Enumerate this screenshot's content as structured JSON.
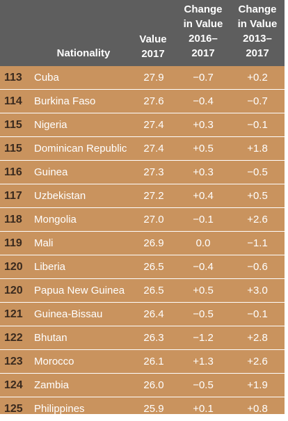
{
  "chart_data": {
    "type": "table",
    "columns": [
      {
        "key": "rank",
        "label": ""
      },
      {
        "key": "nationality",
        "label": "Nationality"
      },
      {
        "key": "value",
        "label": "Value\n2017"
      },
      {
        "key": "change_1y",
        "label": "Change\nin Value\n2016–\n2017"
      },
      {
        "key": "change_4y",
        "label": "Change\nin Value\n2013–\n2017"
      }
    ],
    "rows": [
      {
        "rank": "113",
        "nationality": "Cuba",
        "value": "27.9",
        "change_1y": "−0.7",
        "change_4y": "+0.2"
      },
      {
        "rank": "114",
        "nationality": "Burkina Faso",
        "value": "27.6",
        "change_1y": "−0.4",
        "change_4y": "−0.7"
      },
      {
        "rank": "115",
        "nationality": "Nigeria",
        "value": "27.4",
        "change_1y": "+0.3",
        "change_4y": "−0.1"
      },
      {
        "rank": "115",
        "nationality": "Dominican Republic",
        "value": "27.4",
        "change_1y": "+0.5",
        "change_4y": "+1.8"
      },
      {
        "rank": "116",
        "nationality": "Guinea",
        "value": "27.3",
        "change_1y": "+0.3",
        "change_4y": "−0.5"
      },
      {
        "rank": "117",
        "nationality": "Uzbekistan",
        "value": "27.2",
        "change_1y": "+0.4",
        "change_4y": "+0.5"
      },
      {
        "rank": "118",
        "nationality": "Mongolia",
        "value": "27.0",
        "change_1y": "−0.1",
        "change_4y": "+2.6"
      },
      {
        "rank": "119",
        "nationality": "Mali",
        "value": "26.9",
        "change_1y": "0.0",
        "change_4y": "−1.1"
      },
      {
        "rank": "120",
        "nationality": "Liberia",
        "value": "26.5",
        "change_1y": "−0.4",
        "change_4y": "−0.6"
      },
      {
        "rank": "120",
        "nationality": "Papua New Guinea",
        "value": "26.5",
        "change_1y": "+0.5",
        "change_4y": "+3.0"
      },
      {
        "rank": "121",
        "nationality": "Guinea-Bissau",
        "value": "26.4",
        "change_1y": "−0.5",
        "change_4y": "−0.1"
      },
      {
        "rank": "122",
        "nationality": "Bhutan",
        "value": "26.3",
        "change_1y": "−1.2",
        "change_4y": "+2.8"
      },
      {
        "rank": "123",
        "nationality": "Morocco",
        "value": "26.1",
        "change_1y": "+1.3",
        "change_4y": "+2.6"
      },
      {
        "rank": "124",
        "nationality": "Zambia",
        "value": "26.0",
        "change_1y": "−0.5",
        "change_4y": "+1.9"
      },
      {
        "rank": "125",
        "nationality": "Philippines",
        "value": "25.9",
        "change_1y": "+0.1",
        "change_4y": "+0.8"
      }
    ]
  },
  "colors": {
    "header_bg": "#5e5e5e",
    "row_bg": "#c9935e",
    "text": "#ffffff",
    "rank_text": "#3a2a1e"
  }
}
